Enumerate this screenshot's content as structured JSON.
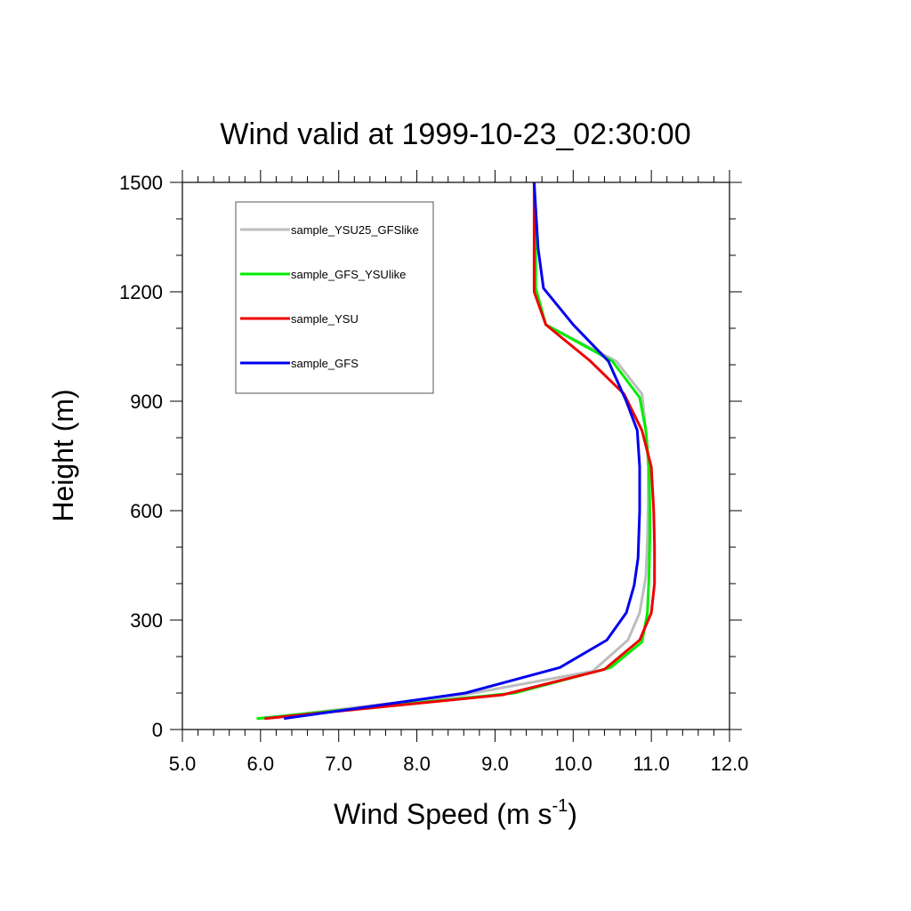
{
  "chart_data": {
    "type": "line",
    "title": "Wind valid at 1999-10-23_02:30:00",
    "xlabel_main": "Wind Speed (m s",
    "xlabel_sup": "-1",
    "xlabel_close": ")",
    "ylabel": "Height (m)",
    "xlim": [
      5.0,
      12.0
    ],
    "ylim": [
      0,
      1500
    ],
    "x_ticks": [
      {
        "value": 5.0,
        "label": "5.0"
      },
      {
        "value": 6.0,
        "label": "6.0"
      },
      {
        "value": 7.0,
        "label": "7.0"
      },
      {
        "value": 8.0,
        "label": "8.0"
      },
      {
        "value": 9.0,
        "label": "9.0"
      },
      {
        "value": 10.0,
        "label": "10.0"
      },
      {
        "value": 11.0,
        "label": "11.0"
      },
      {
        "value": 12.0,
        "label": "12.0"
      }
    ],
    "y_ticks": [
      {
        "value": 0,
        "label": "0"
      },
      {
        "value": 300,
        "label": "300"
      },
      {
        "value": 600,
        "label": "600"
      },
      {
        "value": 900,
        "label": "900"
      },
      {
        "value": 1200,
        "label": "1200"
      },
      {
        "value": 1500,
        "label": "1500"
      }
    ],
    "x_minor_step": 0.2,
    "y_minor_step": 100,
    "grid": false,
    "legend_position": "top-left",
    "series": [
      {
        "name": "sample_YSU25_GFSlike",
        "color": "#bdbdbd",
        "x": [
          6.0,
          8.6,
          10.25,
          10.7,
          10.85,
          10.93,
          10.95,
          10.96,
          10.96,
          10.93,
          10.88,
          10.55,
          9.65,
          9.52,
          9.52,
          9.5
        ],
        "y": [
          30,
          95,
          160,
          245,
          320,
          420,
          520,
          620,
          720,
          820,
          920,
          1010,
          1110,
          1210,
          1400,
          1500
        ]
      },
      {
        "name": "sample_GFS_YSUlike",
        "color": "#00ee00",
        "x": [
          5.95,
          9.25,
          10.48,
          10.88,
          10.95,
          10.97,
          10.98,
          10.98,
          10.97,
          10.93,
          10.85,
          10.5,
          9.65,
          9.52,
          9.52,
          9.5
        ],
        "y": [
          30,
          100,
          170,
          240,
          320,
          420,
          520,
          620,
          720,
          820,
          910,
          1010,
          1110,
          1210,
          1400,
          1500
        ]
      },
      {
        "name": "sample_YSU",
        "color": "#ee0000",
        "x": [
          6.05,
          9.1,
          10.4,
          10.85,
          11.0,
          11.04,
          11.04,
          11.03,
          11.0,
          10.88,
          10.65,
          10.22,
          9.65,
          9.5,
          9.5,
          9.5
        ],
        "y": [
          30,
          95,
          165,
          245,
          320,
          400,
          500,
          600,
          720,
          820,
          920,
          1010,
          1110,
          1200,
          1400,
          1500
        ]
      },
      {
        "name": "sample_GFS",
        "color": "#0000ee",
        "x": [
          6.3,
          8.62,
          9.83,
          10.43,
          10.68,
          10.78,
          10.83,
          10.85,
          10.85,
          10.82,
          10.68,
          10.45,
          10.0,
          9.62,
          9.55,
          9.5
        ],
        "y": [
          30,
          100,
          170,
          245,
          320,
          395,
          470,
          600,
          720,
          820,
          900,
          1010,
          1110,
          1210,
          1320,
          1500
        ]
      }
    ]
  }
}
